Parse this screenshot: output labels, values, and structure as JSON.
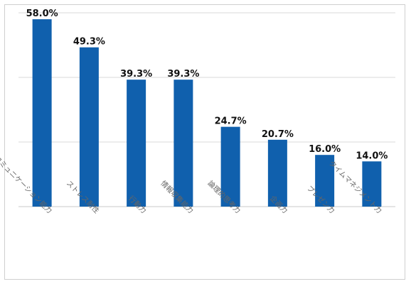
{
  "chart_data": {
    "type": "bar",
    "categories": [
      "コミュニケーション能力",
      "ストレス耐性",
      "行動力",
      "情報収集能力",
      "論理的思考力",
      "企画力",
      "プレゼン力",
      "タイムマネジメント力"
    ],
    "values": [
      58.0,
      49.3,
      39.3,
      39.3,
      24.7,
      20.7,
      16.0,
      14.0
    ],
    "value_labels": [
      "58.0%",
      "49.3%",
      "39.3%",
      "39.3%",
      "24.7%",
      "20.7%",
      "16.0%",
      "14.0%"
    ],
    "title": "",
    "xlabel": "",
    "ylabel": "",
    "ylim": [
      0,
      60
    ],
    "grid": true,
    "legend": "none",
    "colors": {
      "bar": "#1060ad",
      "grid": "#d9d9d9",
      "label": "#111111",
      "category": "#666666"
    }
  }
}
